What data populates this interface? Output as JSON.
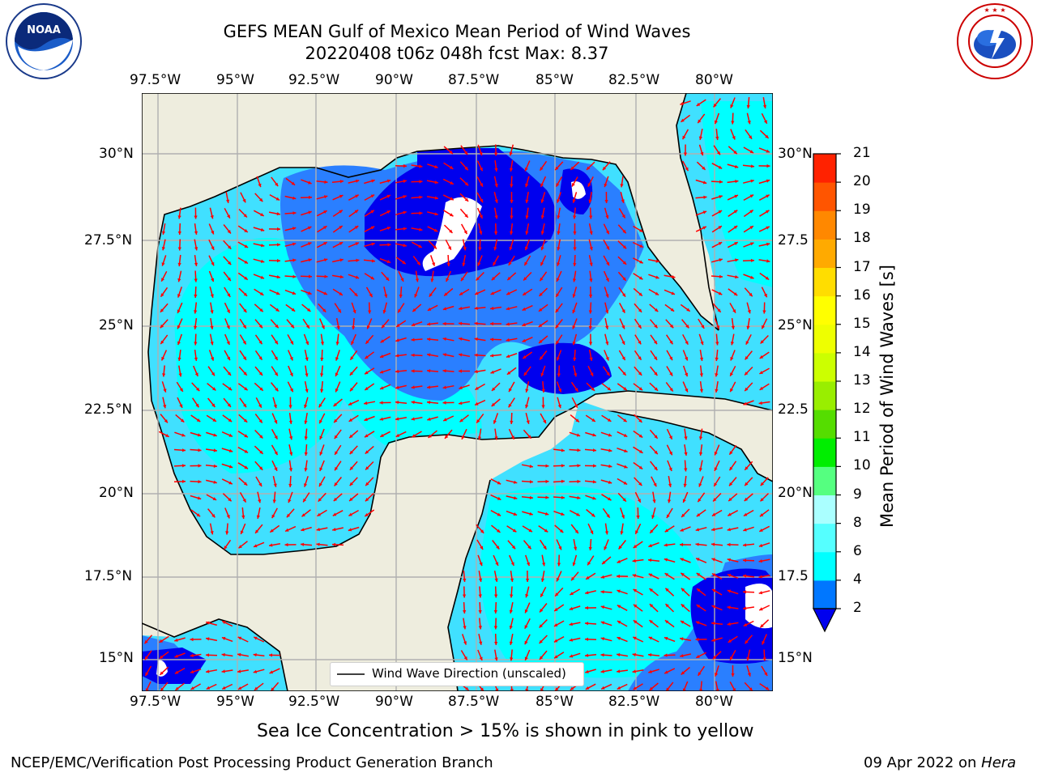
{
  "header": {
    "title_line1": "GEFS MEAN Gulf of Mexico Mean Period of Wind Waves",
    "title_line2": "20220408 t06z 048h fcst   Max: 8.37"
  },
  "logos": {
    "noaa": {
      "text": "NOAA",
      "ring_text": "NATIONAL OCEANIC AND ATMOSPHERIC ADMINISTRATION · U.S. DEPARTMENT OF COMMERCE"
    },
    "nws": {
      "ring_text": "NATIONAL WEATHER SERVICE"
    }
  },
  "map": {
    "lon_labels": [
      "97.5°W",
      "95°W",
      "92.5°W",
      "90°W",
      "87.5°W",
      "85°W",
      "82.5°W",
      "80°W"
    ],
    "lat_labels_left": [
      "30°N",
      "27.5°N",
      "25°N",
      "22.5°N",
      "20°N",
      "17.5°N",
      "15°N"
    ],
    "lat_labels_right": [
      "30°N",
      "27.5",
      "25°N",
      "22.5",
      "20°N",
      "17.5",
      "15°N"
    ],
    "legend_label": "Wind Wave Direction (unscaled)",
    "colors": {
      "land": "#eeedde",
      "ocean_base": "#40e0ff",
      "period_4_6": "#00ffff",
      "period_2_4": "#2a7fff",
      "period_lt_2": "#0000ee",
      "arrow": "#ff0000",
      "grid": "#b0b0b0"
    }
  },
  "colorbar": {
    "label": "Mean Period of Wind Waves [s]",
    "ticks": [
      "2",
      "4",
      "6",
      "8",
      "9",
      "10",
      "11",
      "12",
      "13",
      "14",
      "15",
      "16",
      "17",
      "18",
      "19",
      "20",
      "21"
    ],
    "colors": [
      "#0077ff",
      "#00ffff",
      "#55ffff",
      "#aaffff",
      "#55ff80",
      "#00ee00",
      "#55dd00",
      "#99ee00",
      "#ccff00",
      "#eeff00",
      "#ffff00",
      "#ffdd00",
      "#ffaa00",
      "#ff8800",
      "#ff5500",
      "#ff2200"
    ],
    "extend_min_color": "#0000ee"
  },
  "notes": {
    "sea_ice": "Sea Ice Concentration > 15% is shown in pink to yellow"
  },
  "footer": {
    "left": "NCEP/EMC/Verification Post Processing Product Generation Branch",
    "right_date": "09 Apr 2022 on ",
    "right_machine": "Hera"
  }
}
